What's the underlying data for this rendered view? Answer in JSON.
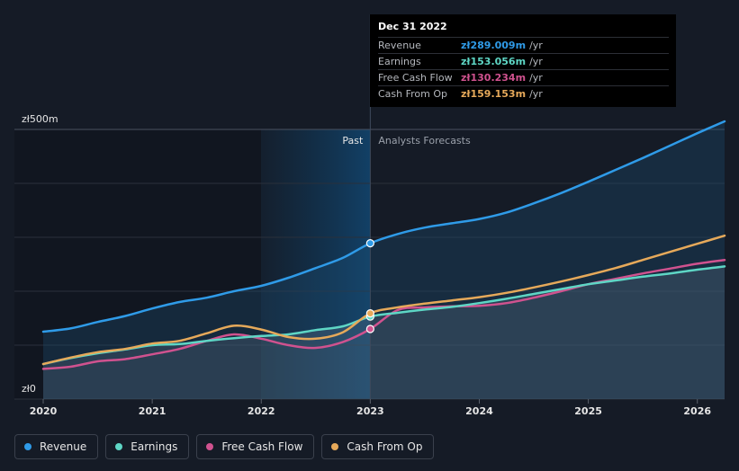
{
  "chart_data": {
    "type": "line",
    "title": "",
    "xlabel": "",
    "ylabel": "",
    "ylim": [
      0,
      500
    ],
    "xlim": [
      2020,
      2026.25
    ],
    "y_tick_labels": [
      "zł500m",
      "zł0"
    ],
    "x_ticks": [
      2020,
      2021,
      2022,
      2023,
      2024,
      2025,
      2026
    ],
    "x_tick_labels": [
      "2020",
      "2021",
      "2022",
      "2023",
      "2024",
      "2025",
      "2026"
    ],
    "divider_x": 2023,
    "past_label": "Past",
    "forecast_label": "Analysts Forecasts",
    "series": [
      {
        "name": "Revenue",
        "color": "#2f9be8",
        "points": [
          [
            2020,
            125
          ],
          [
            2020.25,
            131
          ],
          [
            2020.5,
            143
          ],
          [
            2020.75,
            154
          ],
          [
            2021,
            168
          ],
          [
            2021.25,
            180
          ],
          [
            2021.5,
            188
          ],
          [
            2021.75,
            200
          ],
          [
            2022,
            210
          ],
          [
            2022.25,
            225
          ],
          [
            2022.5,
            243
          ],
          [
            2022.75,
            262
          ],
          [
            2023,
            289
          ],
          [
            2023.25,
            306
          ],
          [
            2023.5,
            318
          ],
          [
            2023.75,
            326
          ],
          [
            2024,
            334
          ],
          [
            2024.25,
            346
          ],
          [
            2024.5,
            363
          ],
          [
            2024.75,
            382
          ],
          [
            2025,
            403
          ],
          [
            2025.25,
            425
          ],
          [
            2025.5,
            447
          ],
          [
            2025.75,
            470
          ],
          [
            2026,
            493
          ],
          [
            2026.25,
            515
          ]
        ]
      },
      {
        "name": "Earnings",
        "color": "#5ed6c5",
        "points": [
          [
            2020,
            65
          ],
          [
            2020.25,
            76
          ],
          [
            2020.5,
            85
          ],
          [
            2020.75,
            92
          ],
          [
            2021,
            100
          ],
          [
            2021.25,
            102
          ],
          [
            2021.5,
            108
          ],
          [
            2021.75,
            113
          ],
          [
            2022,
            117
          ],
          [
            2022.25,
            120
          ],
          [
            2022.5,
            128
          ],
          [
            2022.75,
            135
          ],
          [
            2023,
            153
          ],
          [
            2023.25,
            160
          ],
          [
            2023.5,
            166
          ],
          [
            2023.75,
            171
          ],
          [
            2024,
            178
          ],
          [
            2024.25,
            186
          ],
          [
            2024.5,
            195
          ],
          [
            2024.75,
            204
          ],
          [
            2025,
            213
          ],
          [
            2025.25,
            220
          ],
          [
            2025.5,
            227
          ],
          [
            2025.75,
            233
          ],
          [
            2026,
            240
          ],
          [
            2026.25,
            246
          ]
        ]
      },
      {
        "name": "Free Cash Flow",
        "color": "#d0528f",
        "points": [
          [
            2020,
            56
          ],
          [
            2020.25,
            60
          ],
          [
            2020.5,
            70
          ],
          [
            2020.75,
            74
          ],
          [
            2021,
            83
          ],
          [
            2021.25,
            93
          ],
          [
            2021.5,
            108
          ],
          [
            2021.75,
            120
          ],
          [
            2022,
            112
          ],
          [
            2022.25,
            100
          ],
          [
            2022.5,
            95
          ],
          [
            2022.75,
            106
          ],
          [
            2023,
            130
          ],
          [
            2023.25,
            165
          ],
          [
            2023.5,
            170
          ],
          [
            2023.75,
            172
          ],
          [
            2024,
            173
          ],
          [
            2024.25,
            178
          ],
          [
            2024.5,
            188
          ],
          [
            2024.75,
            200
          ],
          [
            2025,
            213
          ],
          [
            2025.25,
            223
          ],
          [
            2025.5,
            233
          ],
          [
            2025.75,
            242
          ],
          [
            2026,
            251
          ],
          [
            2026.25,
            258
          ]
        ]
      },
      {
        "name": "Cash From Op",
        "color": "#e6a95a",
        "points": [
          [
            2020,
            65
          ],
          [
            2020.25,
            77
          ],
          [
            2020.5,
            87
          ],
          [
            2020.75,
            93
          ],
          [
            2021,
            103
          ],
          [
            2021.25,
            108
          ],
          [
            2021.5,
            122
          ],
          [
            2021.75,
            136
          ],
          [
            2022,
            129
          ],
          [
            2022.25,
            115
          ],
          [
            2022.5,
            112
          ],
          [
            2022.75,
            124
          ],
          [
            2023,
            159
          ],
          [
            2023.25,
            170
          ],
          [
            2023.5,
            177
          ],
          [
            2023.75,
            183
          ],
          [
            2024,
            189
          ],
          [
            2024.25,
            197
          ],
          [
            2024.5,
            207
          ],
          [
            2024.75,
            218
          ],
          [
            2025,
            230
          ],
          [
            2025.25,
            243
          ],
          [
            2025.5,
            258
          ],
          [
            2025.75,
            273
          ],
          [
            2026,
            288
          ],
          [
            2026.25,
            303
          ]
        ]
      }
    ],
    "markers_at_x": 2023
  },
  "tooltip": {
    "date": "Dec 31 2022",
    "unit": "/yr",
    "rows": [
      {
        "label": "Revenue",
        "value": "zł289.009m",
        "color": "#2f9be8"
      },
      {
        "label": "Earnings",
        "value": "zł153.056m",
        "color": "#5ed6c5"
      },
      {
        "label": "Free Cash Flow",
        "value": "zł130.234m",
        "color": "#d0528f"
      },
      {
        "label": "Cash From Op",
        "value": "zł159.153m",
        "color": "#e6a95a"
      }
    ]
  },
  "legend": [
    {
      "label": "Revenue",
      "color": "#2f9be8"
    },
    {
      "label": "Earnings",
      "color": "#5ed6c5"
    },
    {
      "label": "Free Cash Flow",
      "color": "#d0528f"
    },
    {
      "label": "Cash From Op",
      "color": "#e6a95a"
    }
  ]
}
